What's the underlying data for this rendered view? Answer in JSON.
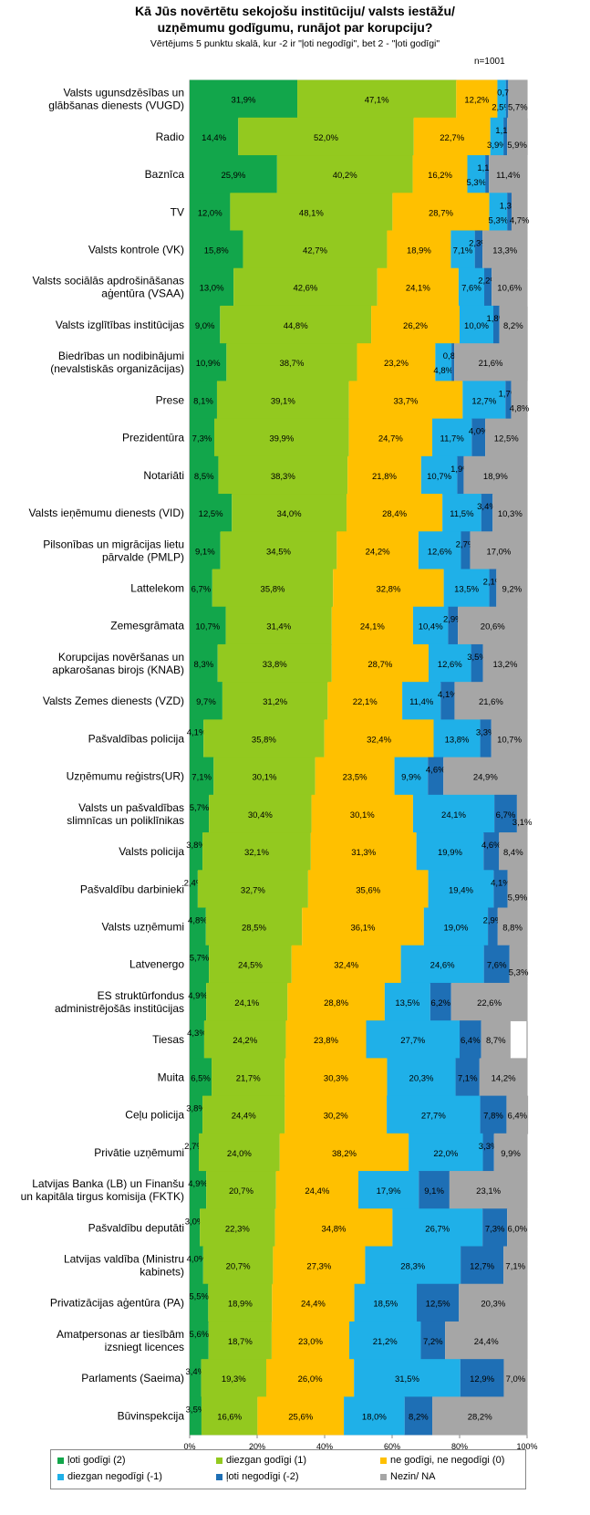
{
  "chart_data": {
    "type": "bar",
    "stacked": true,
    "orientation": "horizontal",
    "title_line1": "Kā Jūs novērtētu sekojošu institūciju/ valsts iestāžu/",
    "title_line2": "uzņēmumu godīgumu, runājot par korupciju?",
    "subtitle": "Vērtējums 5 punktu skalā, kur -2 ir \"ļoti negodīgi\", bet 2 - \"ļoti godīgi\"",
    "sample_size": "n=1001",
    "xlim": [
      0,
      100
    ],
    "xticks": [
      "0%",
      "20%",
      "40%",
      "60%",
      "80%",
      "100%"
    ],
    "colors": [
      "#12A64B",
      "#93C91F",
      "#FFC000",
      "#1FB0E8",
      "#1E6FB5",
      "#A6A6A6"
    ],
    "series_names": [
      "ļoti godīgi (2)",
      "diezgan godīgi (1)",
      "ne godīgi, ne negodīgi (0)",
      "diezgan negodīgi (-1)",
      "ļoti negodīgi (-2)",
      "Nezin/ NA"
    ],
    "categories": [
      {
        "label": [
          "Valsts ugunsdzēsības un",
          "glābšanas dienests (VUGD)"
        ],
        "values": [
          31.9,
          47.1,
          12.2,
          2.5,
          0.7,
          5.7
        ]
      },
      {
        "label": [
          "Radio"
        ],
        "values": [
          14.4,
          52.0,
          22.7,
          3.9,
          1.1,
          5.9
        ]
      },
      {
        "label": [
          "Baznīca"
        ],
        "values": [
          25.9,
          40.2,
          16.2,
          5.3,
          1.1,
          11.4
        ]
      },
      {
        "label": [
          "TV"
        ],
        "values": [
          12.0,
          48.1,
          28.7,
          5.3,
          1.3,
          4.7
        ]
      },
      {
        "label": [
          "Valsts kontrole (VK)"
        ],
        "values": [
          15.8,
          42.7,
          18.9,
          7.1,
          2.3,
          13.3
        ]
      },
      {
        "label": [
          "Valsts sociālās apdrošināšanas",
          "aģentūra (VSAA)"
        ],
        "values": [
          13.0,
          42.6,
          24.1,
          7.6,
          2.2,
          10.6
        ]
      },
      {
        "label": [
          "Valsts izglītības institūcijas"
        ],
        "values": [
          9.0,
          44.8,
          26.2,
          10.0,
          1.8,
          8.2
        ]
      },
      {
        "label": [
          "Biedrības un nodibinājumi",
          "(nevalstiskās organizācijas)"
        ],
        "values": [
          10.9,
          38.7,
          23.2,
          4.8,
          0.8,
          21.6
        ]
      },
      {
        "label": [
          "Prese"
        ],
        "values": [
          8.1,
          39.1,
          33.7,
          12.7,
          1.7,
          4.8
        ]
      },
      {
        "label": [
          "Prezidentūra"
        ],
        "values": [
          7.3,
          39.9,
          24.7,
          11.7,
          4.0,
          12.5
        ]
      },
      {
        "label": [
          "Notariāti"
        ],
        "values": [
          8.5,
          38.3,
          21.8,
          10.7,
          1.9,
          18.9
        ]
      },
      {
        "label": [
          "Valsts ieņēmumu dienests (VID)"
        ],
        "values": [
          12.5,
          34.0,
          28.4,
          11.5,
          3.4,
          10.3
        ]
      },
      {
        "label": [
          "Pilsonības un migrācijas lietu",
          "pārvalde (PMLP)"
        ],
        "values": [
          9.1,
          34.5,
          24.2,
          12.6,
          2.7,
          17.0
        ]
      },
      {
        "label": [
          "Lattelekom"
        ],
        "values": [
          6.7,
          35.8,
          32.8,
          13.5,
          2.1,
          9.2
        ]
      },
      {
        "label": [
          "Zemesgrāmata"
        ],
        "values": [
          10.7,
          31.4,
          24.1,
          10.4,
          2.9,
          20.6
        ]
      },
      {
        "label": [
          "Korupcijas novēršanas un",
          "apkarošanas birojs (KNAB)"
        ],
        "values": [
          8.3,
          33.8,
          28.7,
          12.6,
          3.5,
          13.2
        ]
      },
      {
        "label": [
          "Valsts Zemes dienests (VZD)"
        ],
        "values": [
          9.7,
          31.2,
          22.1,
          11.4,
          4.1,
          21.6
        ]
      },
      {
        "label": [
          "Pašvaldības policija"
        ],
        "values": [
          4.1,
          35.8,
          32.4,
          13.8,
          3.3,
          10.7
        ]
      },
      {
        "label": [
          "Uzņēmumu reģistrs(UR)"
        ],
        "values": [
          7.1,
          30.1,
          23.5,
          9.9,
          4.6,
          24.9
        ]
      },
      {
        "label": [
          "Valsts un pašvaldības",
          "slimnīcas un poliklīnikas"
        ],
        "values": [
          5.7,
          30.4,
          30.1,
          24.1,
          6.7,
          3.1
        ]
      },
      {
        "label": [
          "Valsts policija"
        ],
        "values": [
          3.8,
          32.1,
          31.3,
          19.9,
          4.6,
          8.4
        ]
      },
      {
        "label": [
          "Pašvaldību darbinieki"
        ],
        "values": [
          2.4,
          32.7,
          35.6,
          19.4,
          4.1,
          5.9
        ]
      },
      {
        "label": [
          "Valsts uzņēmumi"
        ],
        "values": [
          4.8,
          28.5,
          36.1,
          19.0,
          2.9,
          8.8
        ]
      },
      {
        "label": [
          "Latvenergo"
        ],
        "values": [
          5.7,
          24.5,
          32.4,
          24.6,
          7.6,
          5.3
        ]
      },
      {
        "label": [
          "ES struktūrfondus",
          "administrējošās institūcijas"
        ],
        "values": [
          4.9,
          24.1,
          28.8,
          13.5,
          6.2,
          22.6
        ]
      },
      {
        "label": [
          "Tiesas"
        ],
        "values": [
          4.3,
          24.2,
          23.8,
          27.7,
          6.4,
          8.7
        ]
      },
      {
        "label": [
          "Muita"
        ],
        "values": [
          6.5,
          21.7,
          30.3,
          20.3,
          7.1,
          14.2
        ]
      },
      {
        "label": [
          "Ceļu policija"
        ],
        "values": [
          3.8,
          24.4,
          30.2,
          27.7,
          7.8,
          6.4
        ]
      },
      {
        "label": [
          "Privātie uzņēmumi"
        ],
        "values": [
          2.7,
          24.0,
          38.2,
          22.0,
          3.3,
          9.9
        ]
      },
      {
        "label": [
          "Latvijas Banka (LB) un Finanšu",
          "un kapitāla tirgus komisija (FKTK)"
        ],
        "values": [
          4.9,
          20.7,
          24.4,
          17.9,
          9.1,
          23.1
        ]
      },
      {
        "label": [
          "Pašvaldību deputāti"
        ],
        "values": [
          3.0,
          22.3,
          34.8,
          26.7,
          7.3,
          6.0
        ]
      },
      {
        "label": [
          "Latvijas valdība (Ministru",
          "kabinets)"
        ],
        "values": [
          4.0,
          20.7,
          27.3,
          28.3,
          12.7,
          7.1
        ]
      },
      {
        "label": [
          "Privatizācijas aģentūra (PA)"
        ],
        "values": [
          5.5,
          18.9,
          24.4,
          18.5,
          12.5,
          20.3
        ]
      },
      {
        "label": [
          "Amatpersonas ar tiesībām",
          "izsniegt licences"
        ],
        "values": [
          5.6,
          18.7,
          23.0,
          21.2,
          7.2,
          24.4
        ]
      },
      {
        "label": [
          "Parlaments (Saeima)"
        ],
        "values": [
          3.4,
          19.3,
          26.0,
          31.5,
          12.9,
          7.0
        ]
      },
      {
        "label": [
          "Būvinspekcija"
        ],
        "values": [
          3.5,
          16.6,
          25.6,
          18.0,
          8.2,
          28.2
        ]
      }
    ]
  }
}
